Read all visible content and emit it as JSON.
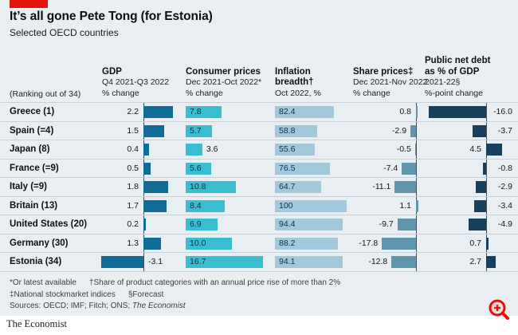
{
  "header": {
    "title": "It’s all gone Pete Tong (for Estonia)",
    "subtitle": "Selected OECD countries"
  },
  "chart_data": {
    "type": "bar",
    "layout": "table-of-bar-columns",
    "ranking_note": "(Ranking out of 34)",
    "columns": [
      {
        "key": "gdp",
        "title": "GDP",
        "period": "Q4 2021-Q3 2022",
        "unit": "% change"
      },
      {
        "key": "cpi",
        "title": "Consumer prices",
        "period": "Dec 2021-Oct 2022*",
        "unit": "% change"
      },
      {
        "key": "breadth",
        "title": "Inflation breadth†",
        "period": "Oct 2022, %",
        "unit": ""
      },
      {
        "key": "shares",
        "title": "Share prices‡",
        "period": "Dec 2021-Nov 2022",
        "unit": "% change"
      },
      {
        "key": "debt",
        "title": "Public net debt as % of GDP",
        "period": "2021-22§",
        "unit": "%-point change"
      }
    ],
    "rows": [
      {
        "country": "Greece (1)",
        "gdp": "2.2",
        "cpi": "7.8",
        "breadth": "82.4",
        "shares": "0.8",
        "debt": "-16.0"
      },
      {
        "country": "Spain (=4)",
        "gdp": "1.5",
        "cpi": "5.7",
        "breadth": "58.8",
        "shares": "-2.9",
        "debt": "-3.7"
      },
      {
        "country": "Japan (8)",
        "gdp": "0.4",
        "cpi": "3.6",
        "breadth": "55.6",
        "shares": "-0.5",
        "debt": "4.5"
      },
      {
        "country": "France (=9)",
        "gdp": "0.5",
        "cpi": "5.6",
        "breadth": "76.5",
        "shares": "-7.4",
        "debt": "-0.8"
      },
      {
        "country": "Italy (=9)",
        "gdp": "1.8",
        "cpi": "10.8",
        "breadth": "64.7",
        "shares": "-11.1",
        "debt": "-2.9"
      },
      {
        "country": "Britain (13)",
        "gdp": "1.7",
        "cpi": "8.4",
        "breadth": "100",
        "shares": "1.1",
        "debt": "-3.4"
      },
      {
        "country": "United States (20)",
        "gdp": "0.2",
        "cpi": "6.9",
        "breadth": "94.4",
        "shares": "-9.7",
        "debt": "-4.9"
      },
      {
        "country": "Germany (30)",
        "gdp": "1.3",
        "cpi": "10.0",
        "breadth": "88.2",
        "shares": "-17.8",
        "debt": "0.7"
      },
      {
        "country": "Estonia (34)",
        "gdp": "-3.1",
        "cpi": "16.7",
        "breadth": "94.1",
        "shares": "-12.8",
        "debt": "2.7"
      }
    ]
  },
  "footnotes": {
    "note1": "*Or latest available",
    "note2": "†Share of product categories with an annual price rise of more than 2%",
    "note3": "‡National stockmarket indices",
    "note4": "§Forecast",
    "sources_prefix": "Sources: OECD; IMF; Fitch; ONS; ",
    "sources_publication": "The Economist"
  },
  "branding": {
    "publication": "The Economist"
  },
  "colors": {
    "accent_red": "#E3120B",
    "background": "#E9EEF2",
    "bar_gdp": "#116B97",
    "bar_cpi": "#3BBDD1",
    "bar_breadth": "#A3C8DB",
    "bar_shares": "#6096AC",
    "bar_debt": "#16405E",
    "row_line": "#C6D1D9",
    "zero_line": "#40505B",
    "label_in_bar": "#0B3048"
  }
}
